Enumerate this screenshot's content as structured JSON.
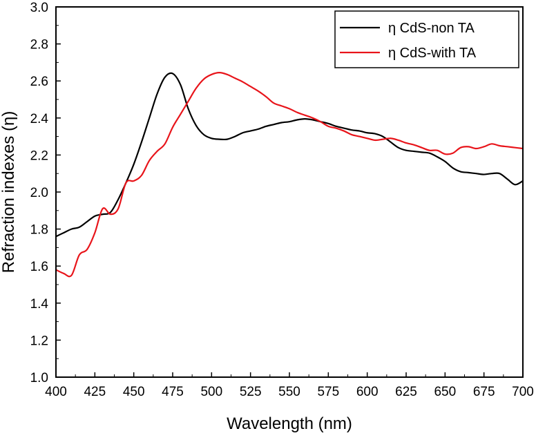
{
  "chart_data": {
    "type": "line",
    "title": "",
    "xlabel": "Wavelength (nm)",
    "ylabel": "Refraction indexes (η)",
    "xlim": [
      400,
      700
    ],
    "ylim": [
      1.0,
      3.0
    ],
    "xticks": [
      400,
      425,
      450,
      475,
      500,
      525,
      550,
      575,
      600,
      625,
      650,
      675,
      700
    ],
    "yticks": [
      1.0,
      1.2,
      1.4,
      1.6,
      1.8,
      2.0,
      2.2,
      2.4,
      2.6,
      2.8,
      3.0
    ],
    "xtick_labels": [
      "400",
      "425",
      "450",
      "475",
      "500",
      "525",
      "550",
      "575",
      "600",
      "625",
      "650",
      "675",
      "700"
    ],
    "ytick_labels": [
      "1.0",
      "1.2",
      "1.4",
      "1.6",
      "1.8",
      "2.0",
      "2.2",
      "2.4",
      "2.6",
      "2.8",
      "3.0"
    ],
    "grid": false,
    "legend_position": "top-right",
    "series": [
      {
        "name": "η CdS-non TA",
        "color": "#000000",
        "x": [
          400,
          405,
          410,
          415,
          420,
          425,
          430,
          435,
          440,
          445,
          450,
          455,
          460,
          465,
          470,
          475,
          480,
          485,
          490,
          495,
          500,
          505,
          510,
          515,
          520,
          525,
          530,
          535,
          540,
          545,
          550,
          555,
          560,
          565,
          570,
          575,
          580,
          585,
          590,
          595,
          600,
          605,
          610,
          615,
          620,
          625,
          630,
          635,
          640,
          645,
          650,
          655,
          660,
          665,
          670,
          675,
          680,
          685,
          690,
          695,
          700
        ],
        "y": [
          1.76,
          1.78,
          1.8,
          1.81,
          1.84,
          1.87,
          1.88,
          1.89,
          1.96,
          2.05,
          2.15,
          2.27,
          2.4,
          2.53,
          2.62,
          2.64,
          2.58,
          2.45,
          2.36,
          2.31,
          2.29,
          2.285,
          2.285,
          2.3,
          2.32,
          2.33,
          2.34,
          2.355,
          2.365,
          2.375,
          2.38,
          2.39,
          2.395,
          2.39,
          2.38,
          2.37,
          2.355,
          2.345,
          2.335,
          2.33,
          2.32,
          2.315,
          2.3,
          2.27,
          2.24,
          2.225,
          2.22,
          2.215,
          2.21,
          2.19,
          2.165,
          2.13,
          2.11,
          2.105,
          2.1,
          2.095,
          2.1,
          2.1,
          2.07,
          2.04,
          2.06
        ]
      },
      {
        "name": "η CdS-with TA",
        "color": "#e8141a",
        "x": [
          400,
          405,
          410,
          415,
          420,
          425,
          430,
          435,
          440,
          445,
          450,
          455,
          460,
          465,
          470,
          475,
          480,
          485,
          490,
          495,
          500,
          505,
          510,
          515,
          520,
          525,
          530,
          535,
          540,
          545,
          550,
          555,
          560,
          565,
          570,
          575,
          580,
          585,
          590,
          595,
          600,
          605,
          610,
          615,
          620,
          625,
          630,
          635,
          640,
          645,
          650,
          655,
          660,
          665,
          670,
          675,
          680,
          685,
          690,
          695,
          700
        ],
        "y": [
          1.58,
          1.56,
          1.55,
          1.66,
          1.69,
          1.78,
          1.91,
          1.88,
          1.91,
          2.05,
          2.06,
          2.09,
          2.17,
          2.22,
          2.26,
          2.35,
          2.42,
          2.49,
          2.56,
          2.61,
          2.635,
          2.645,
          2.635,
          2.615,
          2.595,
          2.57,
          2.545,
          2.515,
          2.48,
          2.465,
          2.45,
          2.43,
          2.415,
          2.4,
          2.38,
          2.355,
          2.345,
          2.33,
          2.31,
          2.3,
          2.29,
          2.28,
          2.285,
          2.29,
          2.28,
          2.265,
          2.255,
          2.24,
          2.225,
          2.225,
          2.205,
          2.21,
          2.24,
          2.245,
          2.235,
          2.245,
          2.26,
          2.25,
          2.245,
          2.24,
          2.235
        ]
      }
    ]
  }
}
